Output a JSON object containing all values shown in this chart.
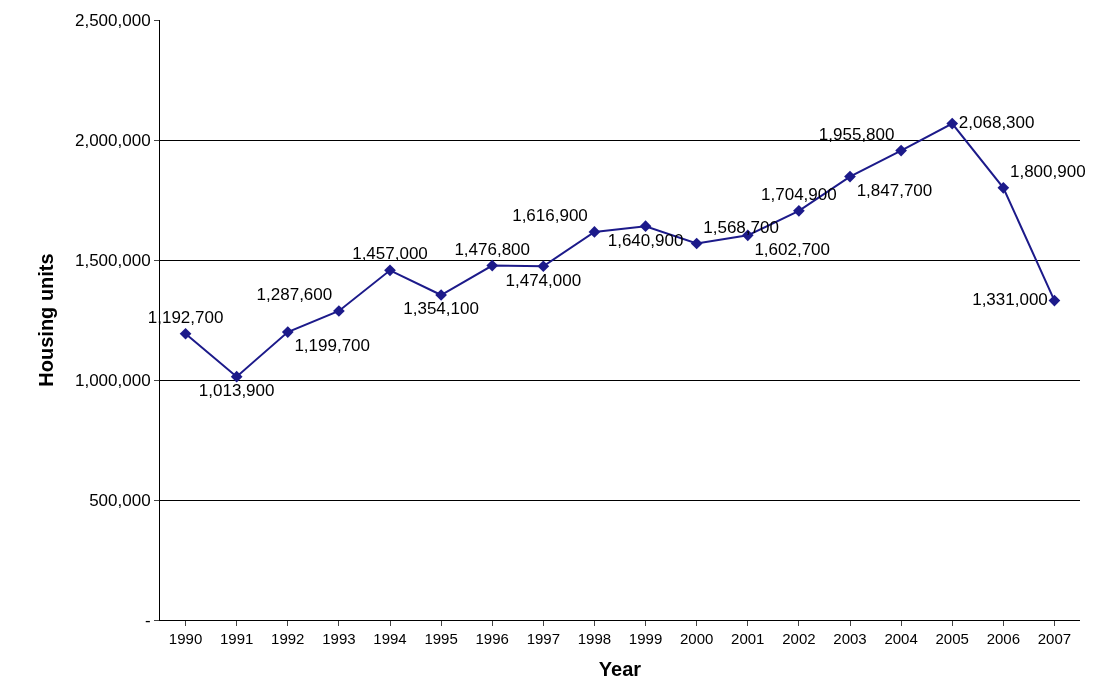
{
  "chart_data": {
    "type": "line",
    "xlabel": "Year",
    "ylabel": "Housing units",
    "categories": [
      "1990",
      "1991",
      "1992",
      "1993",
      "1994",
      "1995",
      "1996",
      "1997",
      "1998",
      "1999",
      "2000",
      "2001",
      "2002",
      "2003",
      "2004",
      "2005",
      "2006",
      "2007"
    ],
    "series": [
      {
        "color": "#1c1a8a",
        "values": [
          1192700,
          1013900,
          1199700,
          1287600,
          1457000,
          1354100,
          1476800,
          1474000,
          1616900,
          1640900,
          1568700,
          1602700,
          1704900,
          1847700,
          1955800,
          2068300,
          1800900,
          1331000
        ]
      }
    ],
    "ylim": [
      0,
      2500000
    ],
    "yticks": [
      {
        "value": 0,
        "label": "-"
      },
      {
        "value": 500000,
        "label": "500,000"
      },
      {
        "value": 1000000,
        "label": "1,000,000"
      },
      {
        "value": 1500000,
        "label": "1,500,000"
      },
      {
        "value": 2000000,
        "label": "2,000,000"
      },
      {
        "value": 2500000,
        "label": "2,500,000"
      }
    ],
    "value_labels": [
      "1,192,700",
      "1,013,900",
      "1,199,700",
      "1,287,600",
      "1,457,000",
      "1,354,100",
      "1,476,800",
      "1,474,000",
      "1,616,900",
      "1,640,900",
      "1,568,700",
      "1,602,700",
      "1,704,900",
      "1,847,700",
      "1,955,800",
      "2,068,300",
      "1,800,900",
      "1,331,000"
    ],
    "grid": "y",
    "marker": "diamond",
    "line_style": "solid"
  }
}
